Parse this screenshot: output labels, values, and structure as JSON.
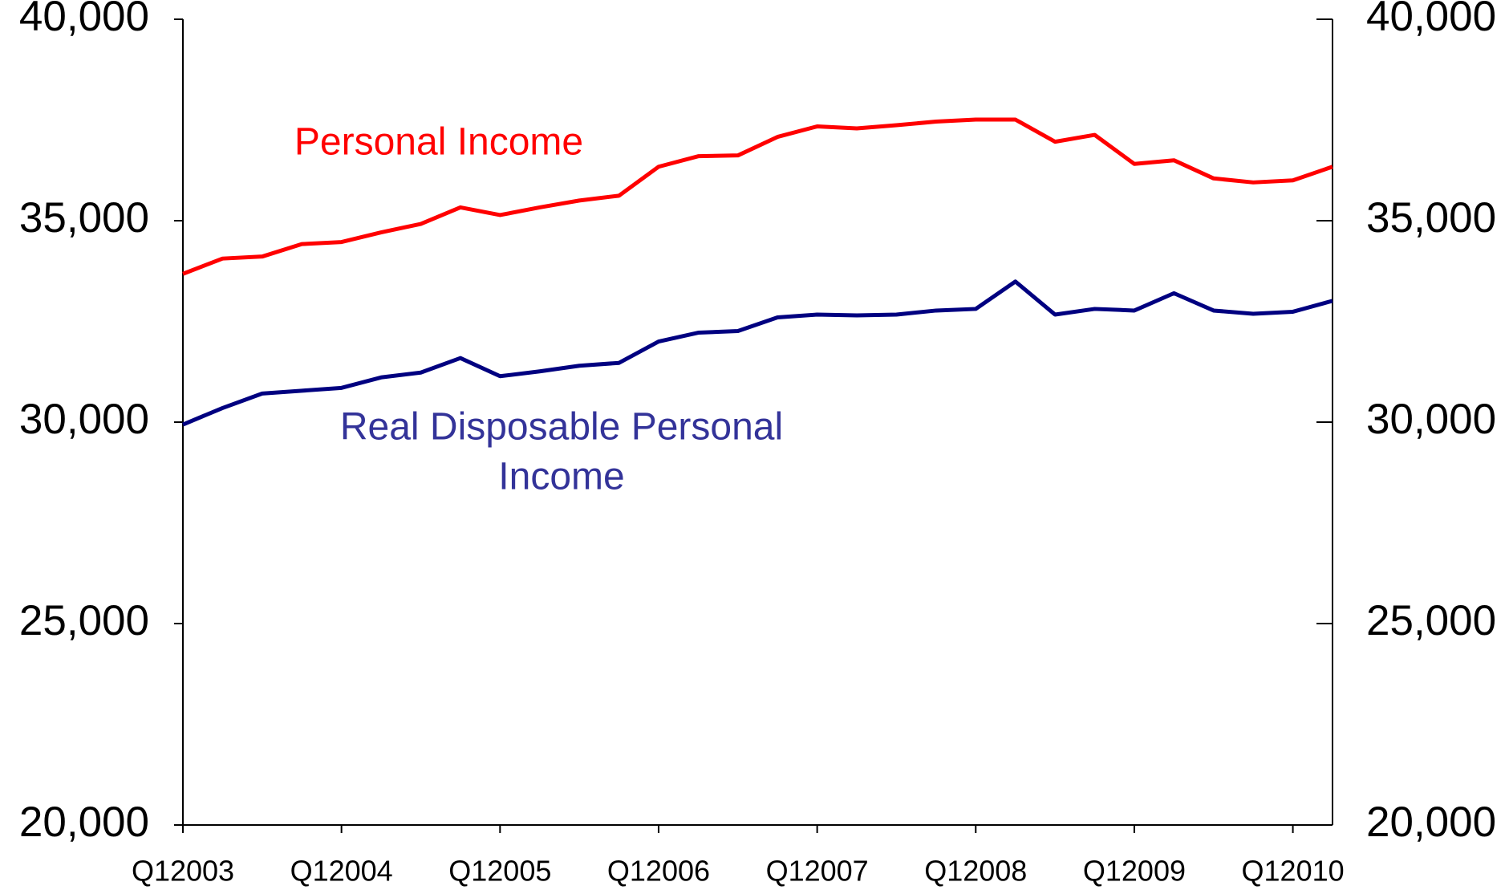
{
  "chart_data": {
    "type": "line",
    "categories": [
      "Q12003",
      null,
      null,
      null,
      "Q12004",
      null,
      null,
      null,
      "Q12005",
      null,
      null,
      null,
      "Q12006",
      null,
      null,
      null,
      "Q12007",
      null,
      null,
      null,
      "Q12008",
      null,
      null,
      null,
      "Q12009",
      null,
      null,
      null,
      "Q12010",
      null
    ],
    "series": [
      {
        "name": "Personal Income",
        "color": "#ff0000",
        "values": [
          33680,
          34060,
          34110,
          34420,
          34470,
          34710,
          34920,
          35330,
          35140,
          35330,
          35500,
          35620,
          36340,
          36600,
          36620,
          37080,
          37340,
          37290,
          37370,
          37460,
          37510,
          37510,
          36960,
          37130,
          36410,
          36500,
          36050,
          35950,
          36000,
          36340
        ]
      },
      {
        "name": "Real Disposable Personal Income",
        "color": "#000080",
        "values": [
          29940,
          30350,
          30710,
          30780,
          30850,
          31110,
          31230,
          31590,
          31140,
          31260,
          31400,
          31470,
          32000,
          32220,
          32260,
          32600,
          32670,
          32650,
          32670,
          32770,
          32810,
          33490,
          32670,
          32810,
          32770,
          33200,
          32770,
          32690,
          32740,
          33010
        ]
      }
    ],
    "annotations": [
      {
        "lines": [
          "Personal Income"
        ],
        "color": "#ff0000"
      },
      {
        "lines": [
          "Real Disposable Personal",
          "Income"
        ],
        "color": "#333399"
      }
    ],
    "ylim": [
      20000,
      40000
    ],
    "yticks": [
      {
        "value": 20000,
        "label": "20,000"
      },
      {
        "value": 25000,
        "label": "25,000"
      },
      {
        "value": 30000,
        "label": "30,000"
      },
      {
        "value": 35000,
        "label": "35,000"
      },
      {
        "value": 40000,
        "label": "40,000"
      }
    ],
    "y2lim": [
      20000,
      40000
    ],
    "y2ticks": [
      {
        "value": 20000,
        "label": "20,000"
      },
      {
        "value": 25000,
        "label": "25,000"
      },
      {
        "value": 30000,
        "label": "30,000"
      },
      {
        "value": 35000,
        "label": "35,000"
      },
      {
        "value": 40000,
        "label": "40,000"
      }
    ]
  }
}
